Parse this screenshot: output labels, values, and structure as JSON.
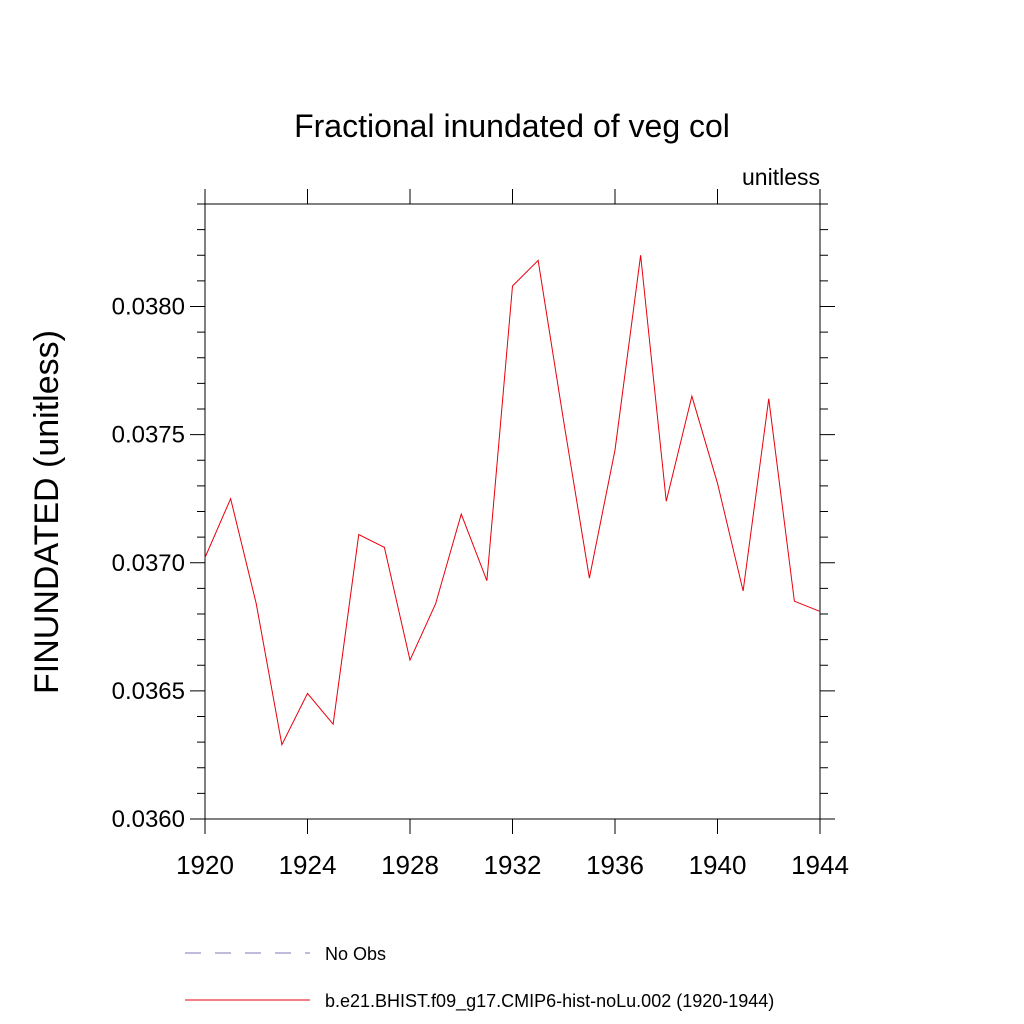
{
  "chart_data": {
    "type": "line",
    "title": "Fractional inundated of veg col",
    "units_label": "unitless",
    "ylabel": "FINUNDATED  (unitless)",
    "xlabel": "",
    "xlim": [
      1920,
      1944
    ],
    "ylim": [
      0.036,
      0.0384
    ],
    "x_ticks": [
      1920,
      1924,
      1928,
      1932,
      1936,
      1940,
      1944
    ],
    "x_tick_labels": [
      "1920",
      "1924",
      "1928",
      "1932",
      "1936",
      "1940",
      "1944"
    ],
    "y_ticks": [
      0.036,
      0.0365,
      0.037,
      0.0375,
      0.038
    ],
    "y_tick_labels": [
      "0.0360",
      "0.0365",
      "0.0370",
      "0.0375",
      "0.0380"
    ],
    "grid": false,
    "legend_position": "bottom",
    "series": [
      {
        "name": "No Obs",
        "color": "#7b78b4",
        "style": "dashed",
        "x": [],
        "values": []
      },
      {
        "name": "b.e21.BHIST.f09_g17.CMIP6-hist-noLu.002 (1920-1944)",
        "color": "#e8000b",
        "style": "solid",
        "x": [
          1920,
          1921,
          1922,
          1923,
          1924,
          1925,
          1926,
          1927,
          1928,
          1929,
          1930,
          1931,
          1932,
          1933,
          1934,
          1935,
          1936,
          1937,
          1938,
          1939,
          1940,
          1941,
          1942,
          1943,
          1944
        ],
        "values": [
          0.03702,
          0.03725,
          0.03684,
          0.03629,
          0.03649,
          0.03637,
          0.03711,
          0.03706,
          0.03662,
          0.03684,
          0.03719,
          0.03693,
          0.03808,
          0.03818,
          0.03755,
          0.03694,
          0.03744,
          0.0382,
          0.03724,
          0.03765,
          0.03731,
          0.03689,
          0.03764,
          0.03685,
          0.03681
        ]
      }
    ]
  }
}
